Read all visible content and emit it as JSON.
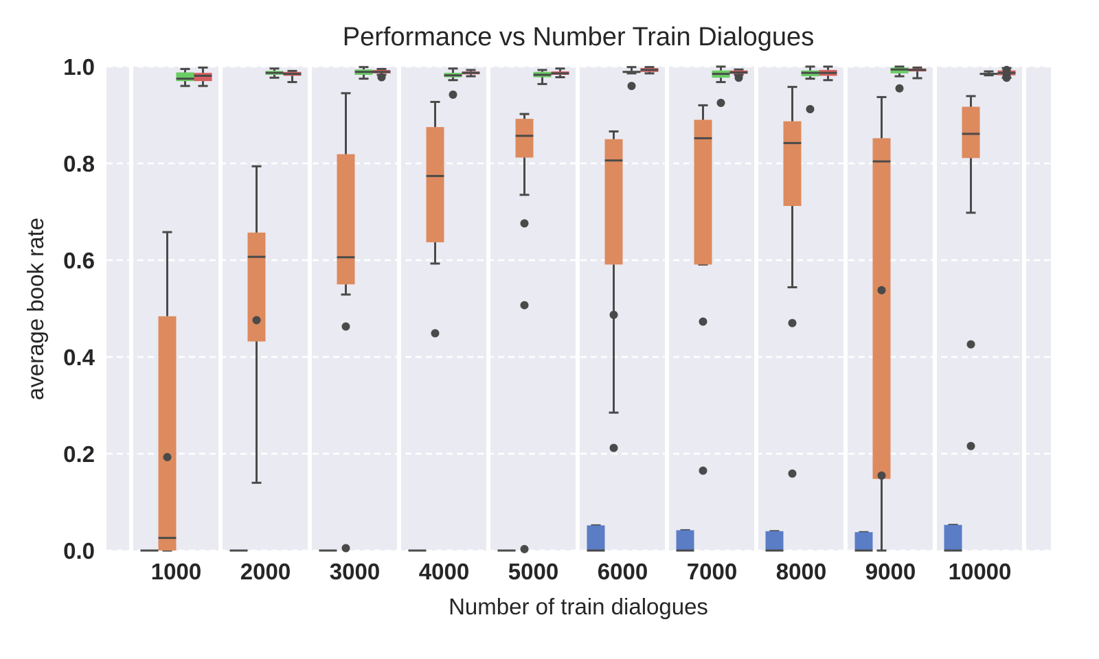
{
  "chart_data": {
    "type": "box",
    "title": "Performance vs Number Train Dialogues",
    "xlabel": "Number of train dialogues",
    "ylabel": "average book rate",
    "categories": [
      "1000",
      "2000",
      "3000",
      "4000",
      "5000",
      "6000",
      "7000",
      "8000",
      "9000",
      "10000"
    ],
    "ylim": [
      0,
      1.0
    ],
    "yticks": [
      "0.0",
      "0.2",
      "0.4",
      "0.6",
      "0.8",
      "1.0"
    ],
    "grid": "horizontal dashed",
    "background": "#eaeaf2",
    "series": [
      {
        "color": "#5a7dc6",
        "boxes": [
          {
            "min": 0,
            "q1": 0,
            "median": 0,
            "q3": 0,
            "max": 0,
            "outliers": []
          },
          {
            "min": 0,
            "q1": 0,
            "median": 0,
            "q3": 0,
            "max": 0,
            "outliers": []
          },
          {
            "min": 0,
            "q1": 0,
            "median": 0,
            "q3": 0,
            "max": 0,
            "outliers": []
          },
          {
            "min": 0,
            "q1": 0,
            "median": 0,
            "q3": 0,
            "max": 0,
            "outliers": []
          },
          {
            "min": 0,
            "q1": 0,
            "median": 0,
            "q3": 0,
            "max": 0,
            "outliers": []
          },
          {
            "min": 0,
            "q1": 0,
            "median": 0,
            "q3": 0.052,
            "max": 0.052,
            "outliers": []
          },
          {
            "min": 0,
            "q1": 0,
            "median": 0,
            "q3": 0.042,
            "max": 0.042,
            "outliers": []
          },
          {
            "min": 0,
            "q1": 0,
            "median": 0,
            "q3": 0.04,
            "max": 0.04,
            "outliers": []
          },
          {
            "min": 0,
            "q1": 0,
            "median": 0,
            "q3": 0.038,
            "max": 0.038,
            "outliers": []
          },
          {
            "min": 0,
            "q1": 0,
            "median": 0,
            "q3": 0.053,
            "max": 0.053,
            "outliers": []
          }
        ]
      },
      {
        "color": "#dd8a5e",
        "boxes": [
          {
            "min": 0,
            "q1": 0,
            "median": 0.026,
            "q3": 0.484,
            "max": 0.658,
            "outliers": [
              0.193
            ]
          },
          {
            "min": 0.14,
            "q1": 0.432,
            "median": 0.607,
            "q3": 0.657,
            "max": 0.794,
            "outliers": [
              0.476
            ]
          },
          {
            "min": 0.529,
            "q1": 0.55,
            "median": 0.606,
            "q3": 0.819,
            "max": 0.945,
            "outliers": [
              0.463,
              0.005
            ]
          },
          {
            "min": 0.593,
            "q1": 0.637,
            "median": 0.774,
            "q3": 0.875,
            "max": 0.927,
            "outliers": [
              0.449
            ]
          },
          {
            "min": 0.735,
            "q1": 0.812,
            "median": 0.857,
            "q3": 0.892,
            "max": 0.902,
            "outliers": [
              0.676,
              0.507,
              0.003
            ]
          },
          {
            "min": 0.285,
            "q1": 0.591,
            "median": 0.806,
            "q3": 0.85,
            "max": 0.866,
            "outliers": [
              0.487,
              0.212
            ]
          },
          {
            "min": 0.591,
            "q1": 0.591,
            "median": 0.852,
            "q3": 0.89,
            "max": 0.92,
            "outliers": [
              0.473,
              0.165
            ]
          },
          {
            "min": 0.544,
            "q1": 0.712,
            "median": 0.842,
            "q3": 0.887,
            "max": 0.958,
            "outliers": [
              0.47,
              0.159
            ]
          },
          {
            "min": 0,
            "q1": 0.148,
            "median": 0.804,
            "q3": 0.852,
            "max": 0.937,
            "outliers": [
              0.538,
              0.155
            ]
          },
          {
            "min": 0.698,
            "q1": 0.811,
            "median": 0.861,
            "q3": 0.917,
            "max": 0.939,
            "outliers": [
              0.426,
              0.216
            ]
          }
        ]
      },
      {
        "color": "#6acc64",
        "boxes": [
          {
            "min": 0.96,
            "q1": 0.97,
            "median": 0.975,
            "q3": 0.988,
            "max": 0.995,
            "outliers": []
          },
          {
            "min": 0.977,
            "q1": 0.983,
            "median": 0.987,
            "q3": 0.991,
            "max": 0.996,
            "outliers": []
          },
          {
            "min": 0.975,
            "q1": 0.983,
            "median": 0.989,
            "q3": 0.994,
            "max": 0.999,
            "outliers": []
          },
          {
            "min": 0.972,
            "q1": 0.978,
            "median": 0.982,
            "q3": 0.987,
            "max": 0.996,
            "outliers": [
              0.942
            ]
          },
          {
            "min": 0.964,
            "q1": 0.978,
            "median": 0.983,
            "q3": 0.989,
            "max": 0.993,
            "outliers": []
          },
          {
            "min": 0.986,
            "q1": 0.987,
            "median": 0.989,
            "q3": 0.991,
            "max": 0.999,
            "outliers": [
              0.96
            ]
          },
          {
            "min": 0.968,
            "q1": 0.977,
            "median": 0.985,
            "q3": 0.992,
            "max": 1.0,
            "outliers": [
              0.925
            ]
          },
          {
            "min": 0.975,
            "q1": 0.98,
            "median": 0.987,
            "q3": 0.992,
            "max": 1.0,
            "outliers": [
              0.912
            ]
          },
          {
            "min": 0.98,
            "q1": 0.986,
            "median": 0.994,
            "q3": 0.998,
            "max": 1.0,
            "outliers": [
              0.955
            ]
          },
          {
            "min": 0.982,
            "q1": 0.983,
            "median": 0.985,
            "q3": 0.987,
            "max": 0.99,
            "outliers": []
          }
        ]
      },
      {
        "color": "#d65f5f",
        "boxes": [
          {
            "min": 0.96,
            "q1": 0.97,
            "median": 0.981,
            "q3": 0.987,
            "max": 0.998,
            "outliers": []
          },
          {
            "min": 0.968,
            "q1": 0.981,
            "median": 0.985,
            "q3": 0.989,
            "max": 0.991,
            "outliers": []
          },
          {
            "min": 0.983,
            "q1": 0.986,
            "median": 0.989,
            "q3": 0.993,
            "max": 0.995,
            "outliers": [
              0.978
            ]
          },
          {
            "min": 0.98,
            "q1": 0.984,
            "median": 0.987,
            "q3": 0.99,
            "max": 0.993,
            "outliers": []
          },
          {
            "min": 0.978,
            "q1": 0.983,
            "median": 0.986,
            "q3": 0.99,
            "max": 0.996,
            "outliers": []
          },
          {
            "min": 0.986,
            "q1": 0.989,
            "median": 0.993,
            "q3": 0.997,
            "max": 0.999,
            "outliers": []
          },
          {
            "min": 0.983,
            "q1": 0.985,
            "median": 0.988,
            "q3": 0.992,
            "max": 0.994,
            "outliers": [
              0.977
            ]
          },
          {
            "min": 0.972,
            "q1": 0.981,
            "median": 0.987,
            "q3": 0.993,
            "max": 1.0,
            "outliers": []
          },
          {
            "min": 0.976,
            "q1": 0.99,
            "median": 0.993,
            "q3": 0.996,
            "max": 0.998,
            "outliers": []
          },
          {
            "min": 0.977,
            "q1": 0.982,
            "median": 0.987,
            "q3": 0.992,
            "max": 0.997,
            "outliers": [
              0.977,
              0.982,
              0.993
            ]
          }
        ]
      }
    ]
  }
}
